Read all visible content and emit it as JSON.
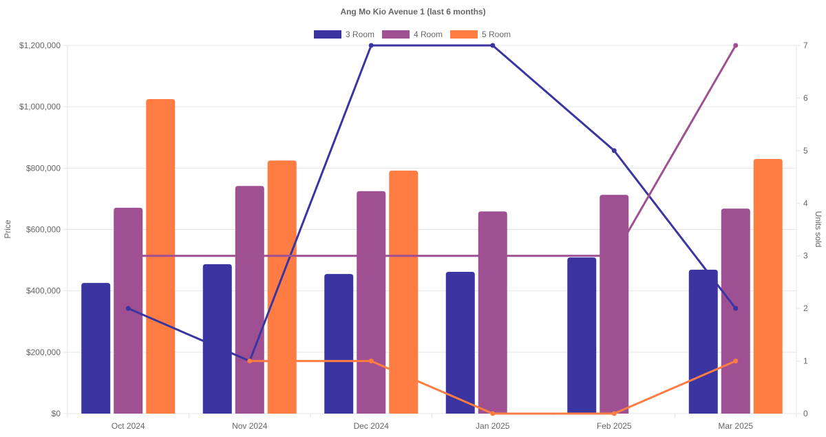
{
  "chart_data": {
    "type": "bar",
    "title": "Ang Mo Kio Avenue 1 (last 6 months)",
    "xlabel": "",
    "ylabel": "Price",
    "y2label": "Units sold",
    "ylim": [
      0,
      1200000
    ],
    "y2lim": [
      0,
      7
    ],
    "yticks": [
      "$0",
      "$200,000",
      "$400,000",
      "$600,000",
      "$800,000",
      "$1,000,000",
      "$1,200,000"
    ],
    "ytick_values": [
      0,
      200000,
      400000,
      600000,
      800000,
      1000000,
      1200000
    ],
    "y2ticks": [
      "0",
      "1",
      "2",
      "3",
      "4",
      "5",
      "6",
      "7"
    ],
    "legend_position": "top",
    "grid": true,
    "categories": [
      "Oct 2024",
      "Nov 2024",
      "Dec 2024",
      "Jan 2025",
      "Feb 2025",
      "Mar 2025"
    ],
    "series": [
      {
        "name": "3 Room",
        "color": "#3a35a0",
        "price": [
          426000,
          487000,
          455000,
          462000,
          509000,
          469000
        ],
        "units": [
          2,
          1,
          7,
          7,
          5,
          2
        ]
      },
      {
        "name": "4 Room",
        "color": "#9e5092",
        "price": [
          671000,
          742000,
          725000,
          659000,
          713000,
          668000
        ],
        "units": [
          3,
          3,
          3,
          3,
          3,
          7
        ]
      },
      {
        "name": "5 Room",
        "color": "#ff7d42",
        "price": [
          1025000,
          825000,
          792000,
          null,
          null,
          830000
        ],
        "units": [
          null,
          1,
          1,
          0,
          0,
          1
        ]
      }
    ]
  }
}
